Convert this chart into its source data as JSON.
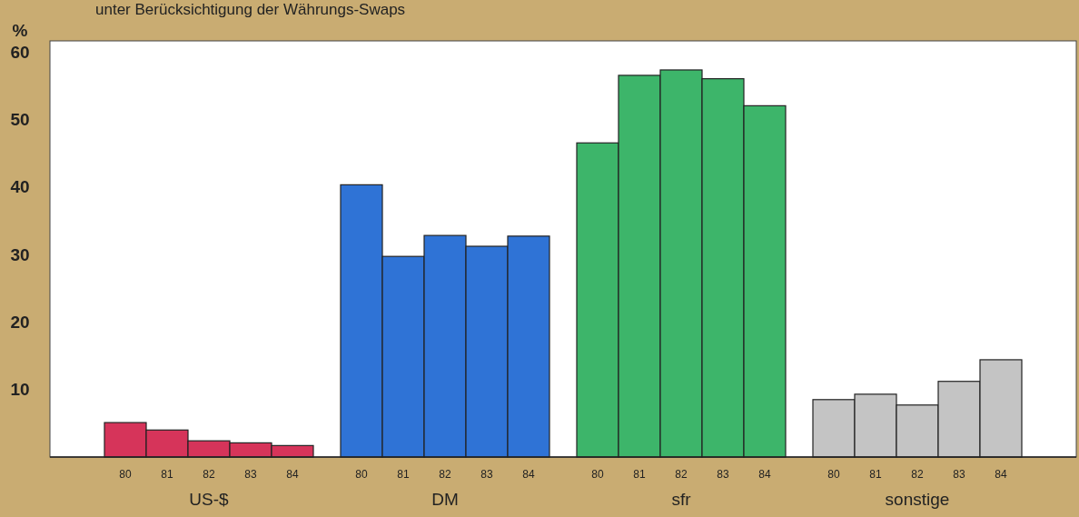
{
  "chart_data": {
    "type": "bar",
    "title": "unter Berücksichtigung der Währungs-Swaps",
    "ylabel": "%",
    "categories": [
      "80",
      "81",
      "82",
      "83",
      "84",
      "80",
      "81",
      "82",
      "83",
      "84",
      "80",
      "81",
      "82",
      "83",
      "84",
      "80",
      "81",
      "82",
      "83",
      "84"
    ],
    "series": [
      {
        "name": "US-$",
        "color": "#d6345a",
        "values": [
          5.1,
          4.0,
          2.4,
          2.1,
          1.7,
          null,
          null,
          null,
          null,
          null,
          null,
          null,
          null,
          null,
          null,
          null,
          null,
          null,
          null,
          null
        ]
      },
      {
        "name": "DM",
        "color": "#2f73d6",
        "values": [
          null,
          null,
          null,
          null,
          null,
          40.3,
          29.7,
          32.8,
          31.2,
          32.7,
          null,
          null,
          null,
          null,
          null,
          null,
          null,
          null,
          null,
          null
        ]
      },
      {
        "name": "sfr",
        "color": "#3db56a",
        "values": [
          null,
          null,
          null,
          null,
          null,
          null,
          null,
          null,
          null,
          null,
          46.5,
          56.5,
          57.3,
          56.0,
          52.0,
          null,
          null,
          null,
          null,
          null
        ]
      },
      {
        "name": "sonstige",
        "color": "#c4c4c4",
        "values": [
          null,
          null,
          null,
          null,
          null,
          null,
          null,
          null,
          null,
          null,
          null,
          null,
          null,
          null,
          null,
          8.5,
          9.3,
          7.7,
          11.2,
          14.4
        ]
      }
    ],
    "ylim": [
      0,
      61.6
    ],
    "yticks": [
      10,
      20,
      30,
      40,
      50,
      60
    ],
    "grid": false
  }
}
